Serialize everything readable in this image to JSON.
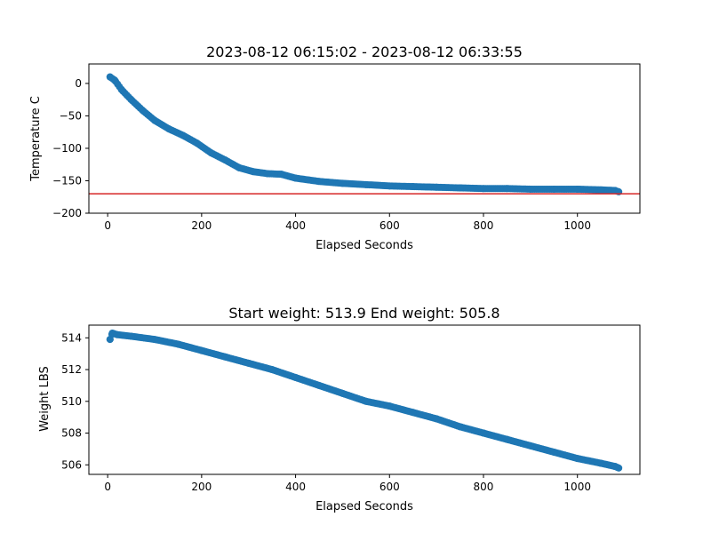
{
  "chart_data": [
    {
      "type": "scatter",
      "title": "2023-08-12 06:15:02 - 2023-08-12 06:33:55",
      "xlabel": "Elapsed Seconds",
      "ylabel": "Temperature C",
      "xlim": [
        -40,
        1133
      ],
      "ylim": [
        -200,
        30
      ],
      "xticks": [
        0,
        200,
        400,
        600,
        800,
        1000
      ],
      "xtick_labels": [
        "0",
        "200",
        "400",
        "600",
        "800",
        "1000"
      ],
      "yticks": [
        -200,
        -150,
        -100,
        -50,
        0
      ],
      "ytick_labels": [
        "−200",
        "−150",
        "−100",
        "−50",
        "0"
      ],
      "grid": false,
      "marker_color": "#1f77b4",
      "reference_line": {
        "y": -170,
        "color": "#d62728"
      },
      "series": [
        {
          "x": [
            5,
            15,
            30,
            50,
            75,
            100,
            130,
            160,
            190,
            220,
            250,
            280,
            310,
            340,
            370,
            400,
            450,
            500,
            550,
            600,
            650,
            700,
            750,
            800,
            850,
            900,
            950,
            1000,
            1050,
            1080,
            1088
          ],
          "y": [
            10,
            5,
            -10,
            -25,
            -42,
            -57,
            -70,
            -80,
            -92,
            -107,
            -118,
            -130,
            -136,
            -139,
            -140,
            -146,
            -151,
            -154,
            -156,
            -158,
            -159,
            -160,
            -161,
            -162,
            -162,
            -163,
            -163,
            -163,
            -164,
            -165,
            -167
          ]
        }
      ]
    },
    {
      "type": "scatter",
      "title": "Start weight: 513.9 End weight: 505.8",
      "xlabel": "Elapsed Seconds",
      "ylabel": "Weight LBS",
      "xlim": [
        -40,
        1133
      ],
      "ylim": [
        505.4,
        514.8
      ],
      "xticks": [
        0,
        200,
        400,
        600,
        800,
        1000
      ],
      "xtick_labels": [
        "0",
        "200",
        "400",
        "600",
        "800",
        "1000"
      ],
      "yticks": [
        506,
        508,
        510,
        512,
        514
      ],
      "ytick_labels": [
        "506",
        "508",
        "510",
        "512",
        "514"
      ],
      "grid": false,
      "marker_color": "#1f77b4",
      "series": [
        {
          "x": [
            5,
            10,
            20,
            50,
            100,
            150,
            200,
            250,
            300,
            350,
            400,
            450,
            500,
            550,
            600,
            650,
            700,
            750,
            800,
            850,
            900,
            950,
            1000,
            1050,
            1080,
            1088
          ],
          "y": [
            513.9,
            514.3,
            514.2,
            514.1,
            513.9,
            513.6,
            513.2,
            512.8,
            512.4,
            512.0,
            511.5,
            511.0,
            510.5,
            510.0,
            509.7,
            509.3,
            508.9,
            508.4,
            508.0,
            507.6,
            507.2,
            506.8,
            506.4,
            506.1,
            505.9,
            505.8
          ]
        }
      ]
    }
  ]
}
